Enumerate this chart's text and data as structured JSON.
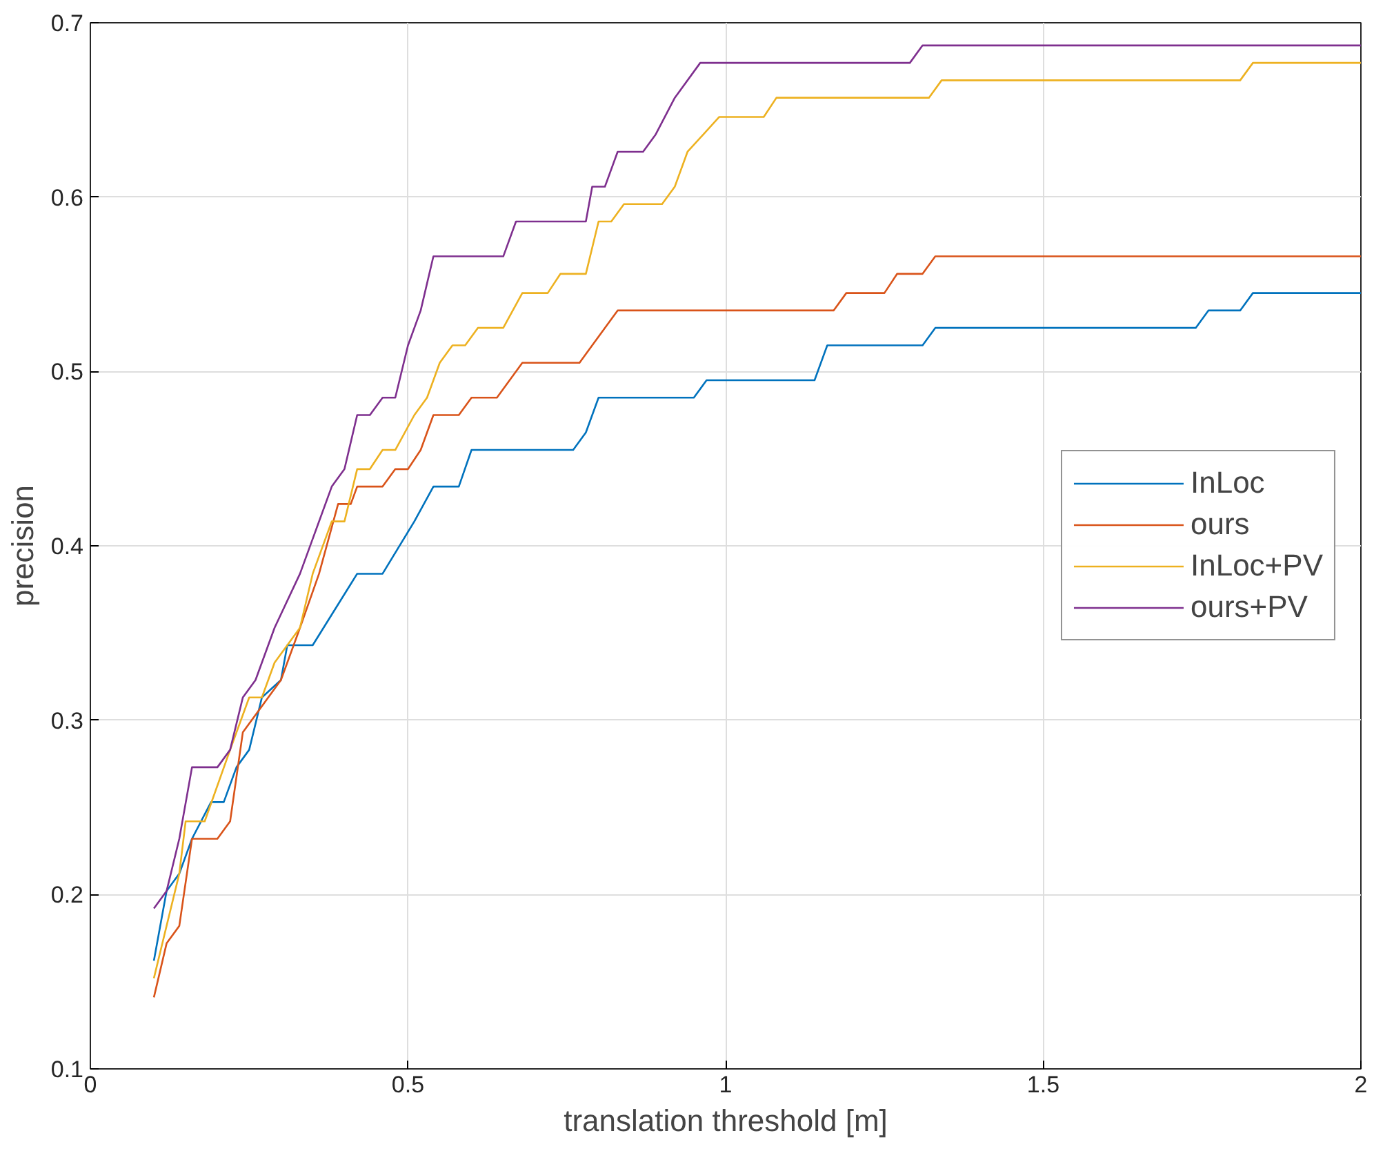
{
  "chart_data": {
    "type": "line",
    "xlabel": "translation threshold [m]",
    "ylabel": "precision",
    "xlim": [
      0,
      2
    ],
    "ylim": [
      0.1,
      0.7
    ],
    "xticks": [
      0,
      0.5,
      1,
      1.5,
      2
    ],
    "yticks": [
      0.1,
      0.2,
      0.3,
      0.4,
      0.5,
      0.6,
      0.7
    ],
    "grid": true,
    "legend": "right",
    "line_style": "solid",
    "series": [
      {
        "name": "InLoc",
        "color": "#0072bd",
        "x": [
          0.1,
          0.12,
          0.14,
          0.16,
          0.19,
          0.21,
          0.23,
          0.25,
          0.27,
          0.3,
          0.31,
          0.35,
          0.42,
          0.46,
          0.51,
          0.54,
          0.58,
          0.6,
          0.76,
          0.78,
          0.8,
          0.95,
          0.97,
          1.14,
          1.16,
          1.31,
          1.33,
          1.74,
          1.76,
          1.81,
          1.83,
          2.0
        ],
        "values": [
          0.162,
          0.202,
          0.212,
          0.232,
          0.253,
          0.253,
          0.273,
          0.283,
          0.313,
          0.323,
          0.343,
          0.343,
          0.384,
          0.384,
          0.414,
          0.434,
          0.434,
          0.455,
          0.455,
          0.465,
          0.485,
          0.485,
          0.495,
          0.495,
          0.515,
          0.515,
          0.525,
          0.525,
          0.535,
          0.535,
          0.545,
          0.545
        ]
      },
      {
        "name": "ours",
        "color": "#d95319",
        "x": [
          0.1,
          0.12,
          0.14,
          0.16,
          0.2,
          0.22,
          0.24,
          0.28,
          0.3,
          0.33,
          0.36,
          0.39,
          0.41,
          0.42,
          0.46,
          0.48,
          0.5,
          0.52,
          0.54,
          0.58,
          0.6,
          0.64,
          0.68,
          0.77,
          0.83,
          1.17,
          1.19,
          1.25,
          1.27,
          1.31,
          1.33,
          2.0
        ],
        "values": [
          0.141,
          0.172,
          0.182,
          0.232,
          0.232,
          0.242,
          0.293,
          0.313,
          0.323,
          0.353,
          0.384,
          0.424,
          0.424,
          0.434,
          0.434,
          0.444,
          0.444,
          0.455,
          0.475,
          0.475,
          0.485,
          0.485,
          0.505,
          0.505,
          0.535,
          0.535,
          0.545,
          0.545,
          0.556,
          0.556,
          0.566,
          0.566
        ]
      },
      {
        "name": "InLoc+PV",
        "color": "#edb120",
        "x": [
          0.1,
          0.12,
          0.14,
          0.15,
          0.18,
          0.22,
          0.25,
          0.27,
          0.29,
          0.31,
          0.33,
          0.35,
          0.38,
          0.4,
          0.42,
          0.44,
          0.46,
          0.48,
          0.51,
          0.53,
          0.55,
          0.57,
          0.59,
          0.61,
          0.65,
          0.68,
          0.72,
          0.74,
          0.78,
          0.8,
          0.82,
          0.84,
          0.9,
          0.92,
          0.94,
          0.99,
          1.06,
          1.08,
          1.32,
          1.34,
          1.81,
          1.83,
          2.0
        ],
        "values": [
          0.152,
          0.182,
          0.212,
          0.242,
          0.242,
          0.283,
          0.313,
          0.313,
          0.333,
          0.343,
          0.353,
          0.384,
          0.414,
          0.414,
          0.444,
          0.444,
          0.455,
          0.455,
          0.475,
          0.485,
          0.505,
          0.515,
          0.515,
          0.525,
          0.525,
          0.545,
          0.545,
          0.556,
          0.556,
          0.586,
          0.586,
          0.596,
          0.596,
          0.606,
          0.626,
          0.646,
          0.646,
          0.657,
          0.657,
          0.667,
          0.667,
          0.677,
          0.677
        ]
      },
      {
        "name": "ours+PV",
        "color": "#7e2f8e",
        "x": [
          0.1,
          0.12,
          0.14,
          0.16,
          0.2,
          0.22,
          0.24,
          0.26,
          0.29,
          0.33,
          0.35,
          0.38,
          0.4,
          0.42,
          0.44,
          0.46,
          0.48,
          0.5,
          0.52,
          0.54,
          0.65,
          0.67,
          0.78,
          0.79,
          0.81,
          0.83,
          0.87,
          0.89,
          0.92,
          0.96,
          1.29,
          1.31,
          2.0
        ],
        "values": [
          0.192,
          0.202,
          0.232,
          0.273,
          0.273,
          0.283,
          0.313,
          0.323,
          0.353,
          0.384,
          0.404,
          0.434,
          0.444,
          0.475,
          0.475,
          0.485,
          0.485,
          0.515,
          0.535,
          0.566,
          0.566,
          0.586,
          0.586,
          0.606,
          0.606,
          0.626,
          0.626,
          0.636,
          0.657,
          0.677,
          0.677,
          0.687,
          0.687
        ]
      }
    ]
  }
}
